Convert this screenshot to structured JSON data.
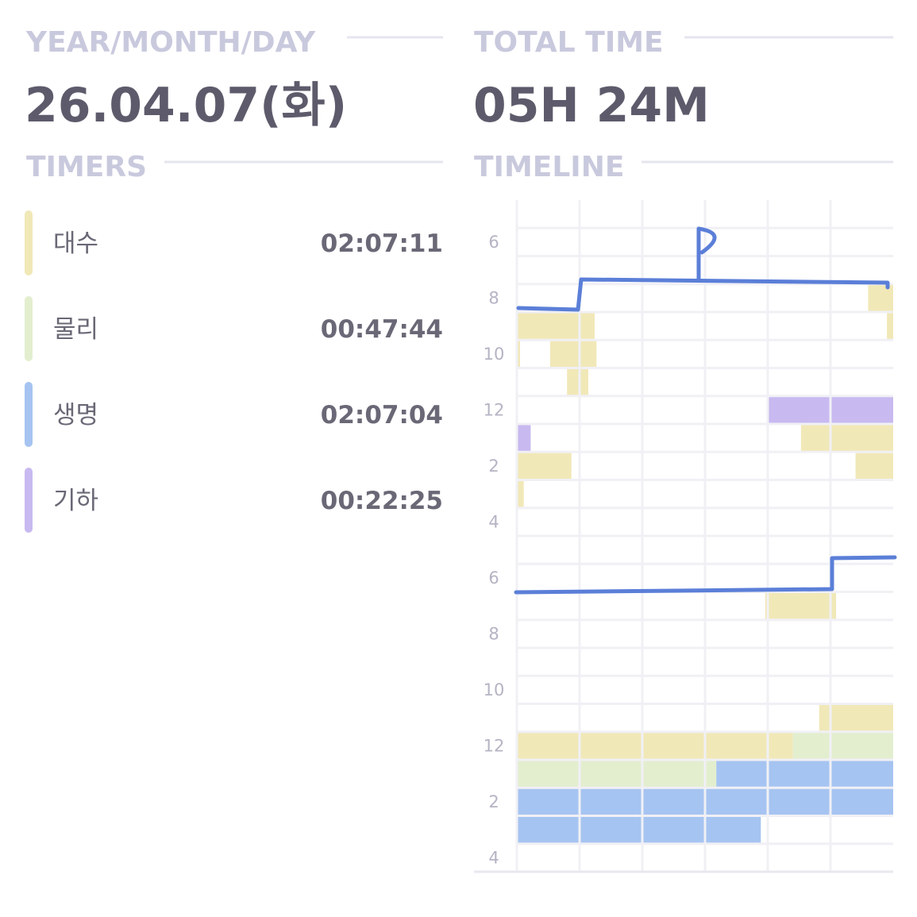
{
  "header": {
    "date_label": "YEAR/MONTH/DAY",
    "date": "26.04.07(화)",
    "total_label": "TOTAL TIME",
    "total": "05H 24M"
  },
  "timers": {
    "title": "TIMERS",
    "items": [
      {
        "name": "대수",
        "time": "02:07:11",
        "color": "#f1e8b8"
      },
      {
        "name": "물리",
        "time": "00:47:44",
        "color": "#e3eecf"
      },
      {
        "name": "생명",
        "time": "02:07:04",
        "color": "#a6c4f1"
      },
      {
        "name": "기하",
        "time": "00:22:25",
        "color": "#c8b9f0"
      }
    ]
  },
  "timeline": {
    "title": "TIMELINE",
    "hour_labels": [
      6,
      8,
      10,
      12,
      2,
      4,
      6,
      8,
      10,
      12,
      2,
      4
    ],
    "blocks": [
      {
        "row": 3,
        "start": 56,
        "end": 60,
        "timer": 0
      },
      {
        "row": 4,
        "start": 0,
        "end": 12.4,
        "timer": 0
      },
      {
        "row": 4,
        "start": 59,
        "end": 60,
        "timer": 0
      },
      {
        "row": 5,
        "start": 0,
        "end": 0.5,
        "timer": 0
      },
      {
        "row": 5,
        "start": 5.3,
        "end": 12.7,
        "timer": 0
      },
      {
        "row": 6,
        "start": 8,
        "end": 11.4,
        "timer": 0
      },
      {
        "row": 7,
        "start": 40,
        "end": 60,
        "timer": 3
      },
      {
        "row": 8,
        "start": 0,
        "end": 2.2,
        "timer": 3
      },
      {
        "row": 8,
        "start": 45.3,
        "end": 60,
        "timer": 0
      },
      {
        "row": 9,
        "start": 0,
        "end": 8.7,
        "timer": 0
      },
      {
        "row": 9,
        "start": 54,
        "end": 60,
        "timer": 0
      },
      {
        "row": 10,
        "start": 0,
        "end": 1.1,
        "timer": 0
      },
      {
        "row": 14,
        "start": 39.6,
        "end": 50.9,
        "timer": 0
      },
      {
        "row": 18,
        "start": 48.2,
        "end": 60,
        "timer": 0
      },
      {
        "row": 19,
        "start": 0,
        "end": 44,
        "timer": 0
      },
      {
        "row": 19,
        "start": 44,
        "end": 60,
        "timer": 1
      },
      {
        "row": 20,
        "start": 0,
        "end": 31.8,
        "timer": 1
      },
      {
        "row": 20,
        "start": 31.8,
        "end": 60,
        "timer": 2
      },
      {
        "row": 21,
        "start": 0,
        "end": 60,
        "timer": 2
      },
      {
        "row": 22,
        "start": 0,
        "end": 38.9,
        "timer": 2
      }
    ]
  }
}
